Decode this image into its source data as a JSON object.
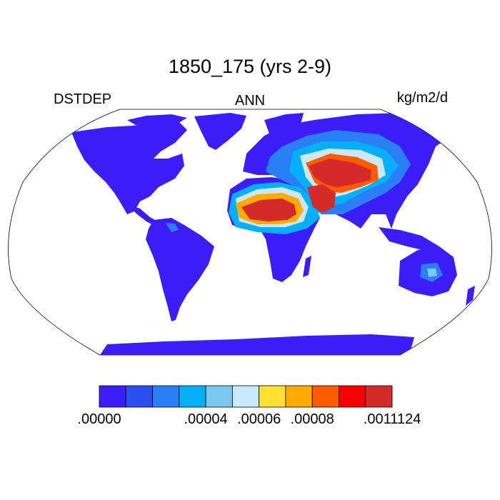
{
  "title": "1850_175 (yrs 2-9)",
  "left_label": "DSTDEP",
  "center_label": "ANN",
  "right_label": "kg/m2/d",
  "colorbar": {
    "colors": [
      "#3c1df7",
      "#2a4ef0",
      "#2a7ff6",
      "#06b0f8",
      "#7ac8f0",
      "#c8e8fb",
      "#ffe033",
      "#ffab00",
      "#ff5b00",
      "#f70000",
      "#d42a2a"
    ],
    "labels": [
      {
        "text": ".00000",
        "boundary": 0
      },
      {
        "text": ".00004",
        "boundary": 4
      },
      {
        "text": ".00006",
        "boundary": 6
      },
      {
        "text": ".00008",
        "boundary": 8
      },
      {
        "text": ".0011124",
        "boundary": 11
      }
    ]
  }
}
